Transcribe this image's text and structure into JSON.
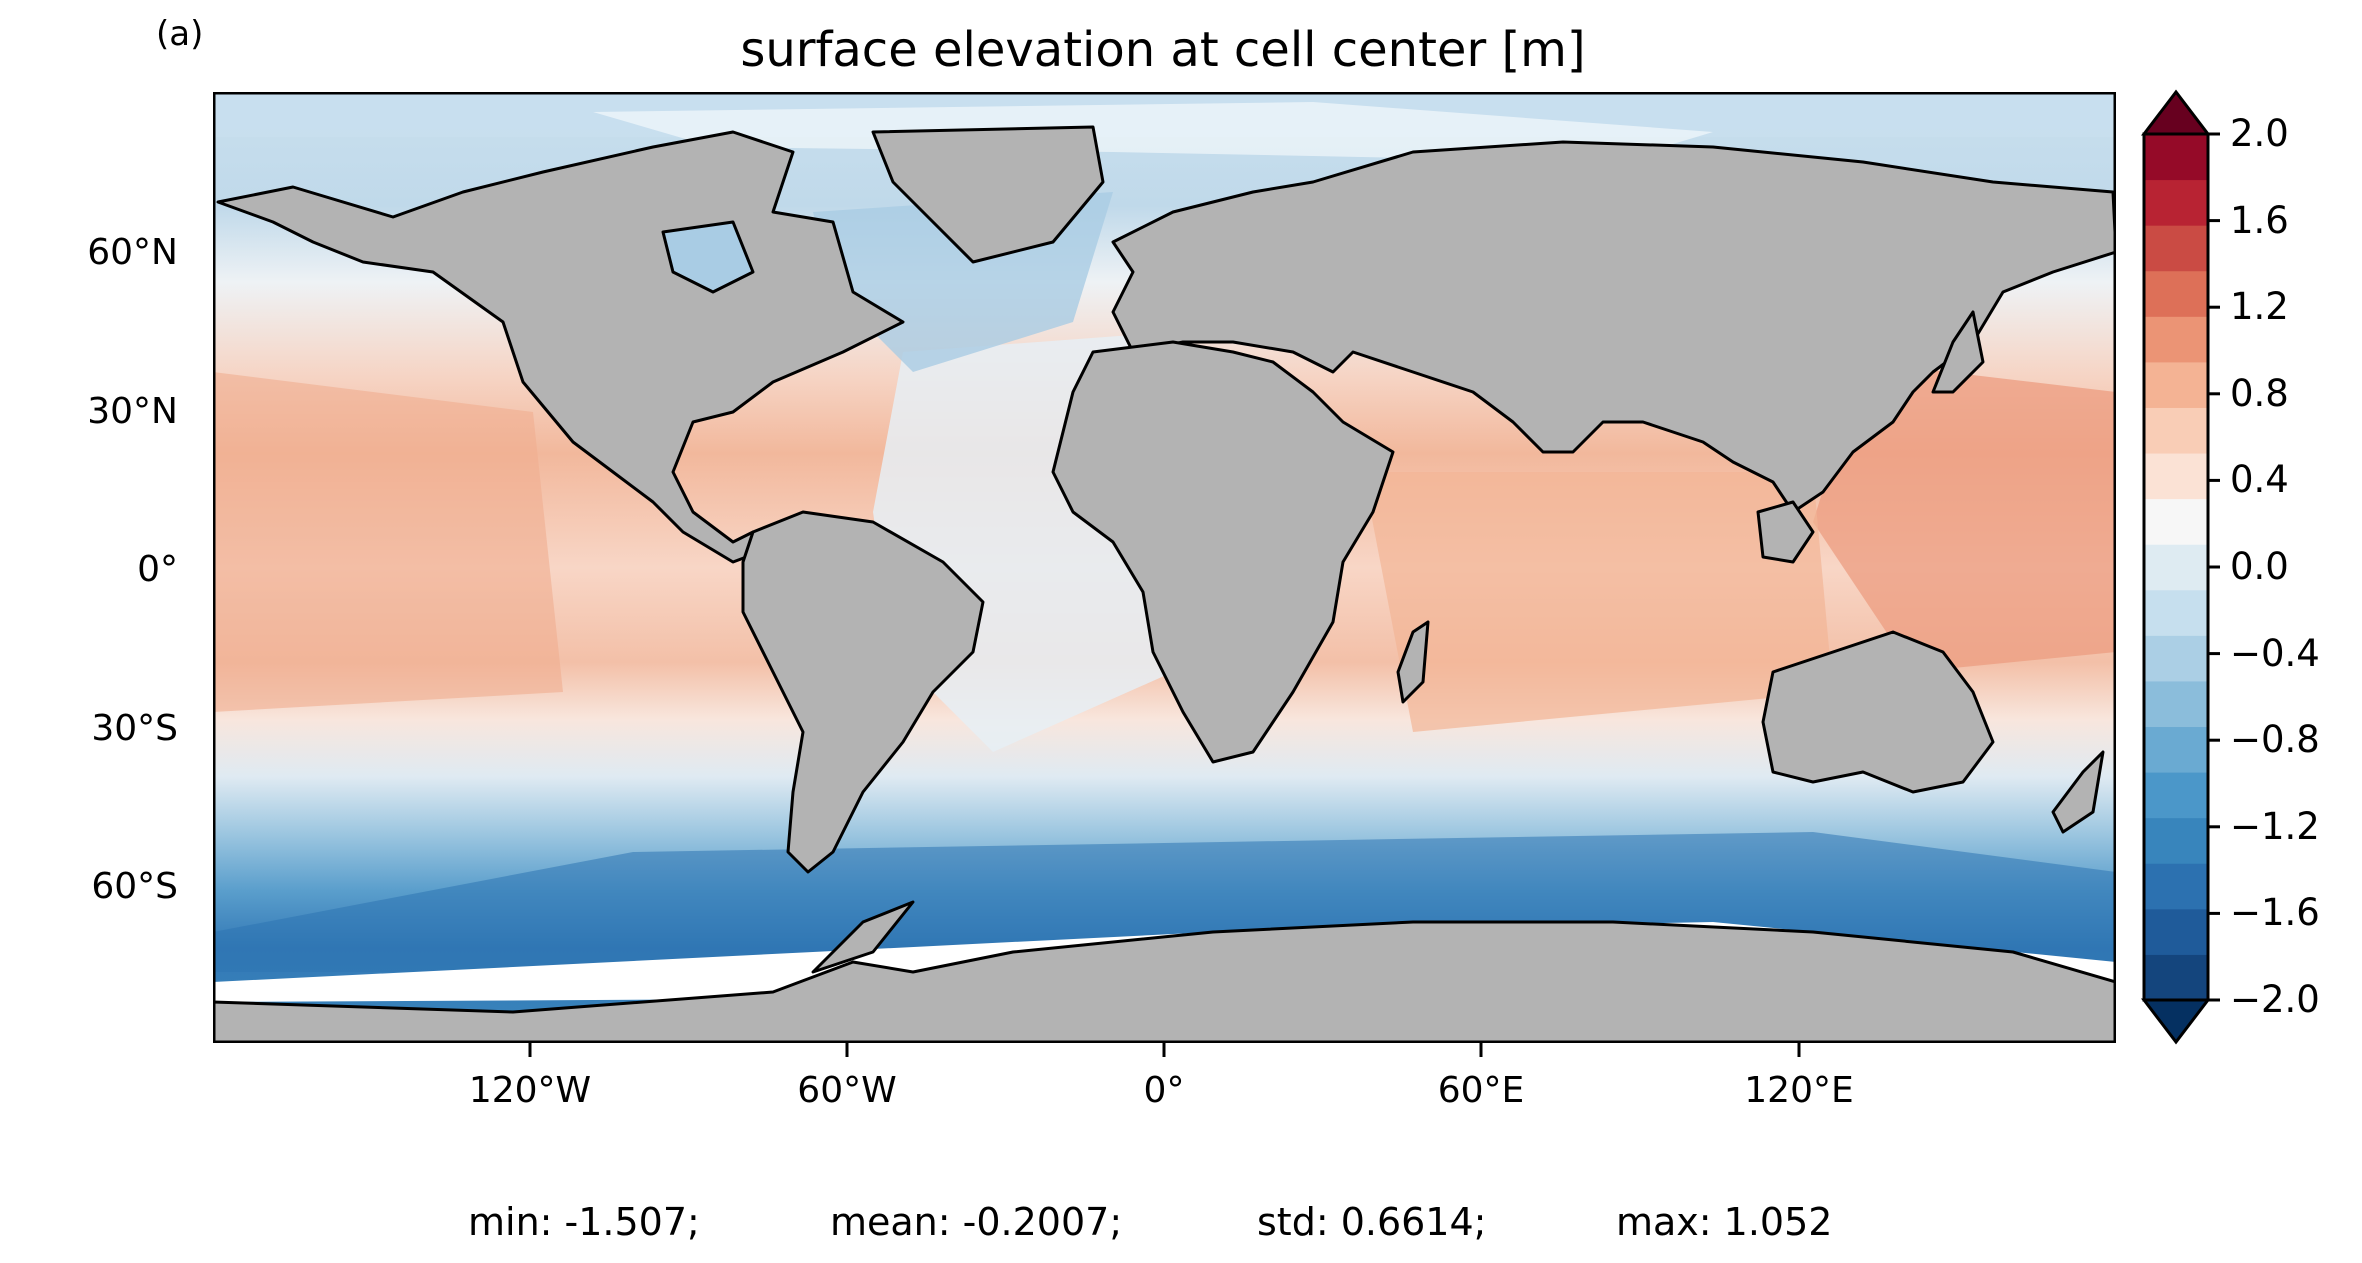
{
  "panel_label": "(a)",
  "title": "surface elevation at cell center [m]",
  "colors": {
    "land": "#b3b3b3",
    "sea_ice": "#ffffff",
    "coast": "#000000",
    "colorbar": [
      "#053061",
      "#14457d",
      "#1f5b9a",
      "#2c71b0",
      "#3885bc",
      "#4b97c9",
      "#6aaad2",
      "#8bbddb",
      "#abcfe5",
      "#c6dfee",
      "#deebf2",
      "#f7f7f7",
      "#fbe2d5",
      "#f9cdb6",
      "#f4b394",
      "#eb9475",
      "#dd7058",
      "#ca4b44",
      "#b82333",
      "#950a28",
      "#67001f"
    ]
  },
  "lat_ticks": [
    "60°N",
    "30°N",
    "0°",
    "30°S",
    "60°S"
  ],
  "lon_ticks": [
    "120°W",
    "60°W",
    "0°",
    "60°E",
    "120°E"
  ],
  "colorbar_ticks": [
    "2.0",
    "1.6",
    "1.2",
    "0.8",
    "0.4",
    "0.0",
    "−0.4",
    "−0.8",
    "−1.2",
    "−1.6",
    "−2.0"
  ],
  "stats": {
    "min": "min: -1.507;",
    "mean": "mean: -0.2007;",
    "std": "std: 0.6614;",
    "max": "max: 1.052"
  }
}
